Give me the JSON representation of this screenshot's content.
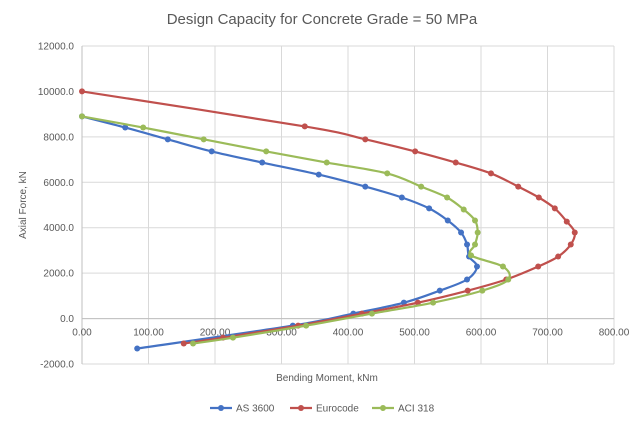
{
  "chart_data": {
    "type": "scatter",
    "title": "Design Capacity for Concrete Grade = 50 MPa",
    "xlabel": "Bending Moment,  kNm",
    "ylabel": "Axial Force, kN",
    "xlim": [
      0,
      800
    ],
    "ylim": [
      -2000,
      12000
    ],
    "x_ticks": [
      "0.00",
      "100.00",
      "200.00",
      "300.00",
      "400.00",
      "500.00",
      "600.00",
      "700.00",
      "800.00"
    ],
    "y_ticks": [
      "-2000.0",
      "0.0",
      "2000.0",
      "4000.0",
      "6000.0",
      "8000.0",
      "10000.0",
      "12000.0"
    ],
    "grid": true,
    "legend_position": "bottom",
    "series": [
      {
        "name": "AS 3600",
        "color": "#4472C4",
        "x": [
          0,
          65,
          129,
          195,
          271,
          356,
          426,
          481,
          522,
          550,
          570,
          579,
          582,
          594,
          579,
          538,
          484,
          408,
          317,
          83
        ],
        "y": [
          8900,
          8410,
          7890,
          7360,
          6870,
          6340,
          5810,
          5330,
          4850,
          4320,
          3790,
          3260,
          2730,
          2290,
          1720,
          1230,
          700,
          220,
          -310,
          -1320
        ]
      },
      {
        "name": "Eurocode",
        "color": "#C0504D",
        "x": [
          0,
          335,
          426,
          501,
          562,
          615,
          656,
          687,
          711,
          729,
          741,
          735,
          716,
          686,
          638,
          580,
          505,
          421,
          325,
          212,
          153
        ],
        "y": [
          10000,
          8460,
          7890,
          7360,
          6870,
          6390,
          5810,
          5330,
          4850,
          4270,
          3790,
          3260,
          2730,
          2290,
          1720,
          1230,
          700,
          220,
          -310,
          -840,
          -1100
        ]
      },
      {
        "name": "ACI 318",
        "color": "#9BBB59",
        "x": [
          0,
          92,
          183,
          277,
          368,
          459,
          510,
          549,
          574,
          591,
          595,
          591,
          585,
          633,
          641,
          602,
          528,
          436,
          337,
          227,
          167
        ],
        "y": [
          8900,
          8410,
          7890,
          7360,
          6870,
          6390,
          5810,
          5330,
          4800,
          4320,
          3790,
          3260,
          2780,
          2290,
          1720,
          1230,
          700,
          220,
          -310,
          -840,
          -1100
        ]
      }
    ]
  }
}
